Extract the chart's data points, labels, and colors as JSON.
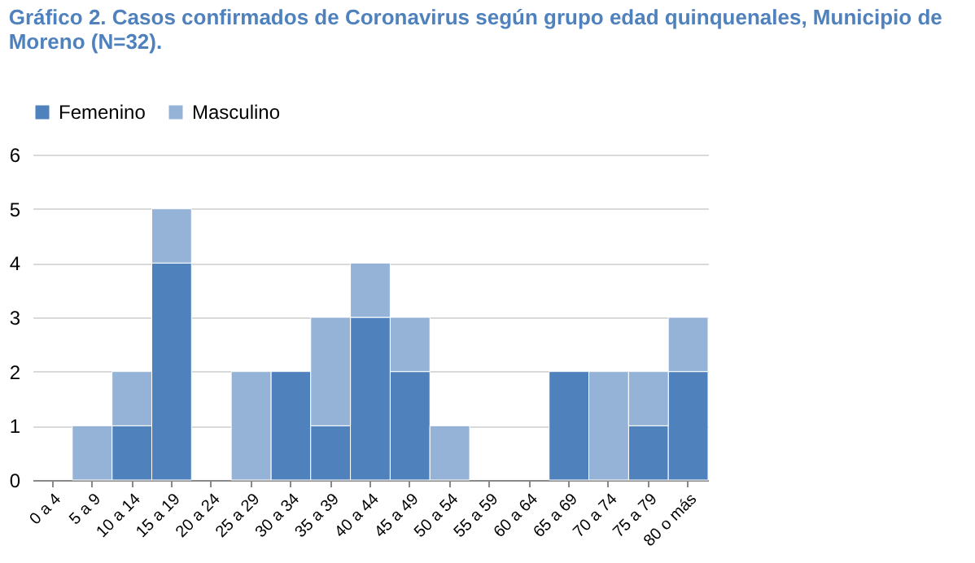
{
  "chart_data": {
    "type": "bar",
    "title": "Gráfico 2. Casos confirmados de Coronavirus según grupo edad quinquenales, Municipio de Moreno (N=32).",
    "categories": [
      "0 a 4",
      "5 a 9",
      "10 a 14",
      "15 a 19",
      "20 a 24",
      "25 a 29",
      "30 a 34",
      "35 a 39",
      "40 a 44",
      "45 a 49",
      "50 a 54",
      "55 a 59",
      "60 a 64",
      "65 a 69",
      "70 a 74",
      "75 a 79",
      "80 o más"
    ],
    "series": [
      {
        "name": "Femenino",
        "color": "#4f81bd",
        "values": [
          0,
          0,
          1,
          4,
          0,
          0,
          2,
          1,
          3,
          2,
          0,
          0,
          0,
          2,
          0,
          1,
          2
        ]
      },
      {
        "name": "Masculino",
        "color": "#95b3d7",
        "values": [
          0,
          1,
          1,
          1,
          0,
          2,
          0,
          2,
          1,
          1,
          1,
          0,
          0,
          0,
          2,
          1,
          1
        ]
      }
    ],
    "stacked": true,
    "ylim": [
      0,
      6
    ],
    "yticks": [
      0,
      1,
      2,
      3,
      4,
      5,
      6
    ],
    "grid": "y",
    "legend": "top"
  }
}
